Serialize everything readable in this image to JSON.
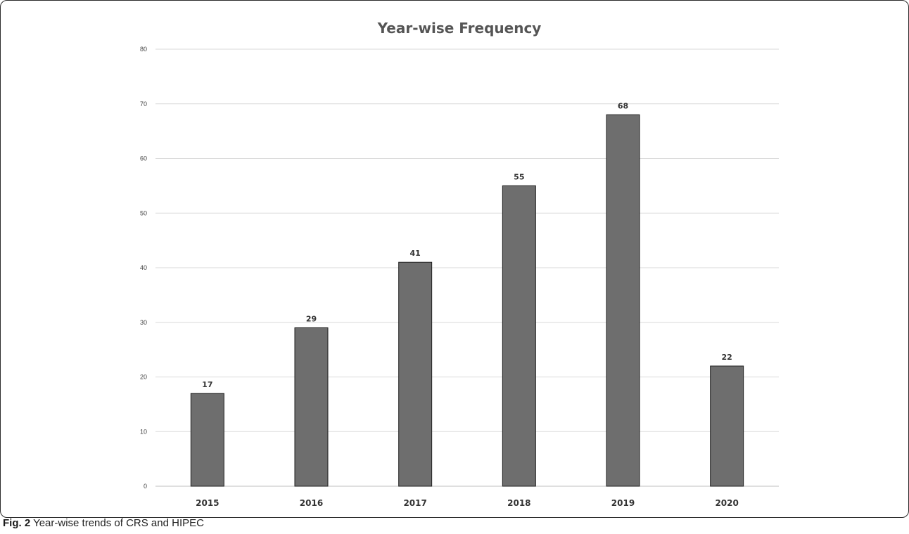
{
  "chart_data": {
    "type": "bar",
    "title": "Year-wise Frequency",
    "categories": [
      "2015",
      "2016",
      "2017",
      "2018",
      "2019",
      "2020"
    ],
    "values": [
      17,
      29,
      41,
      55,
      68,
      22
    ],
    "ylim": [
      0,
      80
    ],
    "yticks": [
      0,
      10,
      20,
      30,
      40,
      50,
      60,
      70,
      80
    ],
    "grid": true,
    "legend": "none",
    "bar_color": "#6e6e6e",
    "bar_edge_color": "#1e1e1e",
    "grid_color": "#d9d9d9"
  },
  "caption": {
    "label": "Fig. 2",
    "text": "Year-wise trends of CRS and HIPEC"
  }
}
